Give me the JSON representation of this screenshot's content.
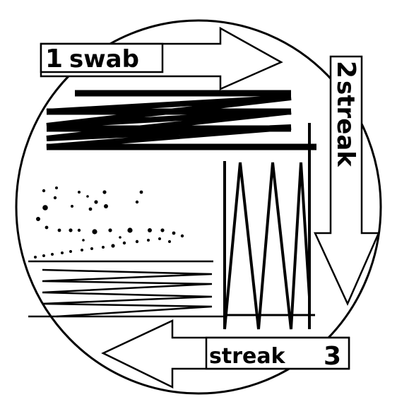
{
  "labels": {
    "step1_num": "1",
    "step1_word": "swab",
    "step2_num": "2",
    "step2_word": "streak",
    "step3_word": "streak",
    "step3_num": "3"
  },
  "colors": {
    "ink": "#000000",
    "background": "#ffffff"
  }
}
